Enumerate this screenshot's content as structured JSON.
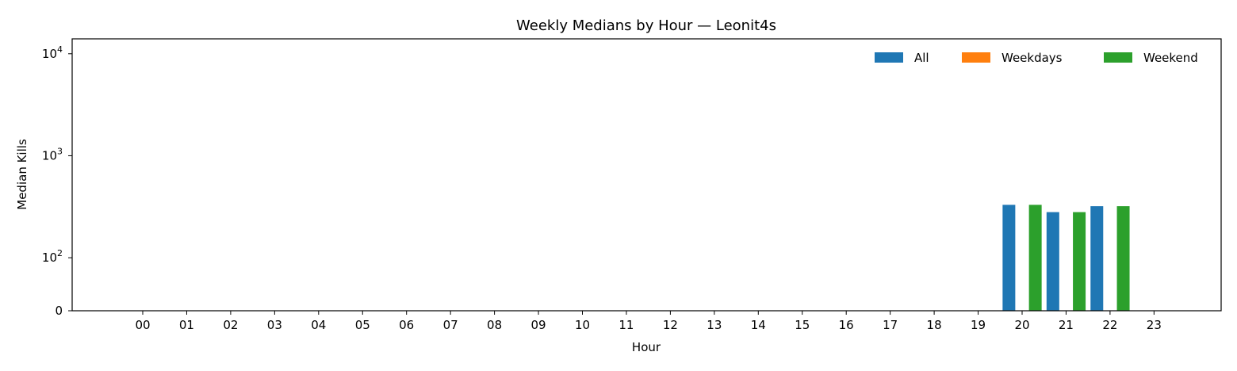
{
  "chart_data": {
    "type": "bar",
    "title": "Weekly Medians by Hour — Leonit4s",
    "xlabel": "Hour",
    "ylabel": "Median Kills",
    "y_scale": "symlog",
    "ylim": [
      0,
      14000
    ],
    "y_ticks": [
      {
        "value": 0,
        "base": "0",
        "exp": ""
      },
      {
        "value": 100,
        "base": "10",
        "exp": "2"
      },
      {
        "value": 1000,
        "base": "10",
        "exp": "3"
      },
      {
        "value": 10000,
        "base": "10",
        "exp": "4"
      }
    ],
    "categories": [
      "00",
      "01",
      "02",
      "03",
      "04",
      "05",
      "06",
      "07",
      "08",
      "09",
      "10",
      "11",
      "12",
      "13",
      "14",
      "15",
      "16",
      "17",
      "18",
      "19",
      "20",
      "21",
      "22",
      "23"
    ],
    "legend_position": "top-right",
    "grid": false,
    "series": [
      {
        "name": "All",
        "color": "#1f77b4",
        "values": [
          0,
          0,
          0,
          0,
          0,
          0,
          0,
          0,
          0,
          0,
          0,
          0,
          0,
          0,
          0,
          0,
          0,
          0,
          0,
          0,
          330,
          280,
          320,
          0
        ]
      },
      {
        "name": "Weekdays",
        "color": "#ff7f0e",
        "values": [
          0,
          0,
          0,
          0,
          0,
          0,
          0,
          0,
          0,
          0,
          0,
          0,
          0,
          0,
          0,
          0,
          0,
          0,
          0,
          0,
          0,
          0,
          0,
          0
        ]
      },
      {
        "name": "Weekend",
        "color": "#2ca02c",
        "values": [
          0,
          0,
          0,
          0,
          0,
          0,
          0,
          0,
          0,
          0,
          0,
          0,
          0,
          0,
          0,
          0,
          0,
          0,
          0,
          0,
          330,
          280,
          320,
          0
        ]
      }
    ]
  }
}
